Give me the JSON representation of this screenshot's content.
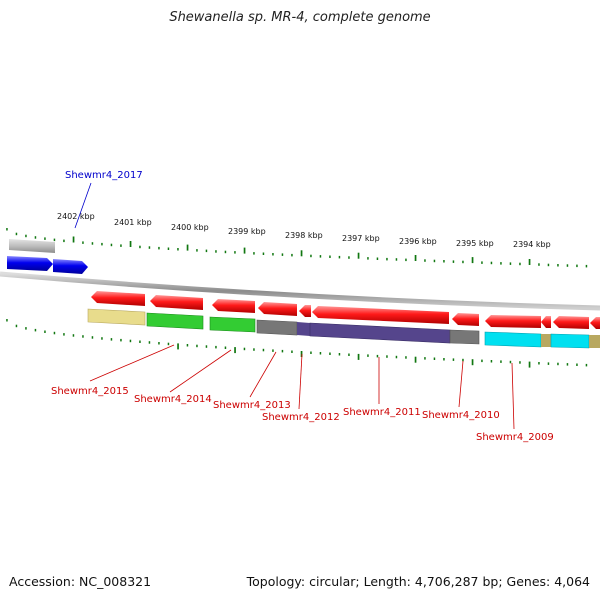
{
  "title": "Shewanella sp. MR-4, complete genome",
  "footer": {
    "accession": "Accession: NC_008321",
    "summary": "Topology: circular; Length: 4,706,287 bp; Genes: 4,064"
  },
  "ticks": [
    "2402 kbp",
    "2401 kbp",
    "2400 kbp",
    "2399 kbp",
    "2398 kbp",
    "2397 kbp",
    "2396 kbp",
    "2395 kbp",
    "2394 kbp"
  ],
  "top_labels": [
    {
      "text": "Shewmr4_2017",
      "color": "#0000cc"
    }
  ],
  "bottom_labels": [
    {
      "text": "Shewmr4_2015",
      "color": "#cc0000"
    },
    {
      "text": "Shewmr4_2014",
      "color": "#cc0000"
    },
    {
      "text": "Shewmr4_2013",
      "color": "#cc0000"
    },
    {
      "text": "Shewmr4_2012",
      "color": "#cc0000"
    },
    {
      "text": "Shewmr4_2011",
      "color": "#cc0000"
    },
    {
      "text": "Shewmr4_2010",
      "color": "#cc0000"
    },
    {
      "text": "Shewmr4_2009",
      "color": "#cc0000"
    }
  ],
  "colors": {
    "forward_gene": "#0000ee",
    "reverse_gene": "#ee0000",
    "backbone": "#888888",
    "ticks": "#117711",
    "cog_khaki": "#e8dc8c",
    "cog_green": "#33cc33",
    "cog_gray": "#777777",
    "cog_purple": "#55458c",
    "cog_cyan": "#00e0f0",
    "cog_tan": "#b8a860",
    "pseudo": "#bbbbbb"
  }
}
